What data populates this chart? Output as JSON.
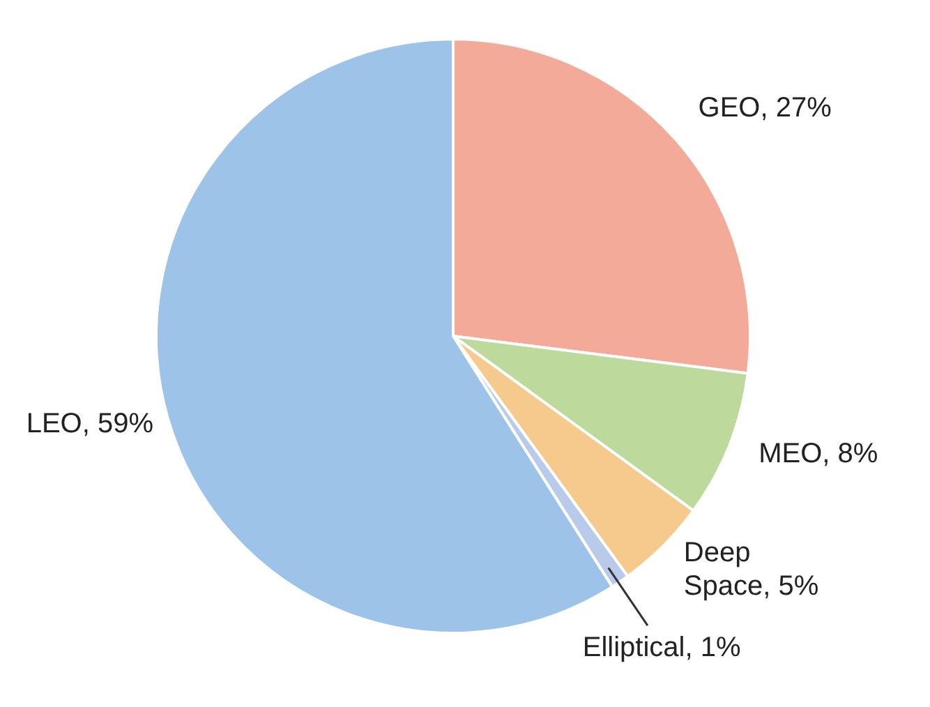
{
  "chart_data": {
    "type": "pie",
    "categories": [
      "GEO",
      "MEO",
      "Deep Space",
      "Elliptical",
      "LEO"
    ],
    "values": [
      27,
      8,
      5,
      1,
      59
    ],
    "value_labels": [
      "27%",
      "8%",
      "5%",
      "1%",
      "59%"
    ],
    "colors": [
      "#f4aa98",
      "#bdd99b",
      "#f6ca8c",
      "#b9cbea",
      "#9dc3e9"
    ],
    "legend": false
  }
}
